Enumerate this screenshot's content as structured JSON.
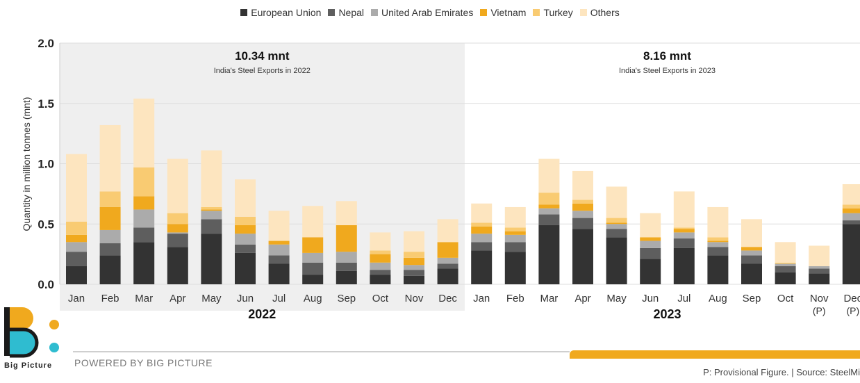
{
  "chart_data": {
    "type": "bar",
    "stacked": true,
    "ylabel": "Quantity in million tonnes (mnt)",
    "ylim": [
      0,
      2.0
    ],
    "yticks": [
      "0.0",
      "0.5",
      "1.0",
      "1.5",
      "2.0"
    ],
    "grid": true,
    "legend_position": "top-center",
    "categories": [
      "Jan",
      "Feb",
      "Mar",
      "Apr",
      "May",
      "Jun",
      "Jul",
      "Aug",
      "Sep",
      "Oct",
      "Nov",
      "Dec",
      "Jan",
      "Feb",
      "Mar",
      "Apr",
      "May",
      "Jun",
      "Jul",
      "Aug",
      "Sep",
      "Oct",
      "Nov",
      "Dec"
    ],
    "category_sublabels": [
      "",
      "",
      "",
      "",
      "",
      "",
      "",
      "",
      "",
      "",
      "",
      "",
      "",
      "",
      "",
      "",
      "",
      "",
      "",
      "",
      "",
      "",
      "(P)",
      "(P)"
    ],
    "year_groups": [
      {
        "label": "2022",
        "total": "10.34 mnt",
        "subtitle": "India's Steel Exports in 2022",
        "start": 0,
        "end": 11
      },
      {
        "label": "2023",
        "total": "8.16 mnt",
        "subtitle": "India's Steel Exports in 2023",
        "start": 12,
        "end": 23
      }
    ],
    "series": [
      {
        "name": "European Union",
        "color": "#333333",
        "values": [
          0.15,
          0.24,
          0.35,
          0.31,
          0.42,
          0.26,
          0.17,
          0.08,
          0.11,
          0.08,
          0.07,
          0.13,
          0.28,
          0.27,
          0.49,
          0.46,
          0.39,
          0.21,
          0.3,
          0.24,
          0.17,
          0.1,
          0.09,
          0.5
        ]
      },
      {
        "name": "Nepal",
        "color": "#5e5e5e",
        "values": [
          0.12,
          0.1,
          0.12,
          0.11,
          0.12,
          0.07,
          0.07,
          0.1,
          0.07,
          0.04,
          0.05,
          0.04,
          0.07,
          0.08,
          0.09,
          0.09,
          0.07,
          0.09,
          0.08,
          0.07,
          0.07,
          0.05,
          0.04,
          0.03
        ]
      },
      {
        "name": "United Arab Emirates",
        "color": "#ababab",
        "values": [
          0.08,
          0.11,
          0.15,
          0.01,
          0.07,
          0.09,
          0.09,
          0.08,
          0.09,
          0.06,
          0.04,
          0.05,
          0.07,
          0.06,
          0.05,
          0.06,
          0.04,
          0.06,
          0.05,
          0.04,
          0.04,
          0.02,
          0.02,
          0.06
        ]
      },
      {
        "name": "Vietnam",
        "color": "#f0a91e",
        "values": [
          0.06,
          0.19,
          0.11,
          0.07,
          0.01,
          0.07,
          0.03,
          0.13,
          0.22,
          0.07,
          0.06,
          0.13,
          0.06,
          0.03,
          0.03,
          0.06,
          0.01,
          0.03,
          0.03,
          0.01,
          0.03,
          0.0,
          0.0,
          0.04
        ]
      },
      {
        "name": "Turkey",
        "color": "#f9cb72",
        "values": [
          0.11,
          0.13,
          0.24,
          0.09,
          0.02,
          0.07,
          0.0,
          0.0,
          0.0,
          0.03,
          0.05,
          0.0,
          0.03,
          0.03,
          0.1,
          0.03,
          0.04,
          0.0,
          0.01,
          0.03,
          0.0,
          0.01,
          0.0,
          0.03
        ]
      },
      {
        "name": "Others",
        "color": "#fde5bf",
        "values": [
          0.56,
          0.55,
          0.57,
          0.45,
          0.47,
          0.31,
          0.25,
          0.26,
          0.2,
          0.15,
          0.17,
          0.19,
          0.16,
          0.17,
          0.28,
          0.24,
          0.26,
          0.2,
          0.3,
          0.25,
          0.23,
          0.17,
          0.17,
          0.17
        ]
      }
    ]
  },
  "footer": {
    "logo_text": "Big Picture",
    "powered_by": "POWERED BY BIG PICTURE",
    "source_note": "P: Provisional Figure. | Source: SteelMi"
  },
  "colors": {
    "panel_2022": "#efefef",
    "gridline": "#dddddd",
    "axis_text": "#333333",
    "accent_orange": "#f0a91e",
    "logo_teal": "#2fbcd0",
    "logo_dark": "#1a1a1a"
  }
}
